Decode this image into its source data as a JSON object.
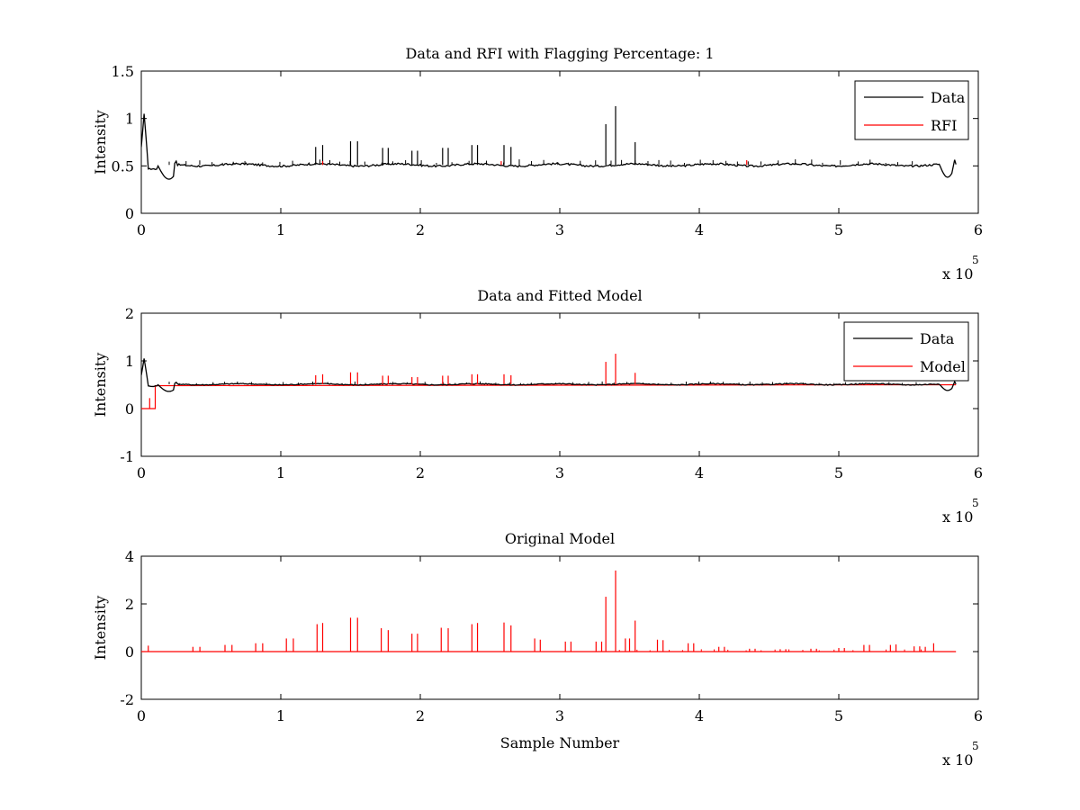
{
  "chart_data": [
    {
      "type": "line",
      "title": "Data and RFI with Flagging Percentage: 1",
      "xlabel": "",
      "ylabel": "Intensity",
      "xlim": [
        0,
        600000
      ],
      "ylim": [
        0,
        1.5
      ],
      "xticks": [
        0,
        1,
        2,
        3,
        4,
        5,
        6
      ],
      "yticks": [
        0,
        0.5,
        1,
        1.5
      ],
      "x_exponent_label": "x 10",
      "x_exponent_power": "5",
      "legend_position": "top-right",
      "baseline": 0.51,
      "series": [
        {
          "name": "Data",
          "color": "#000000"
        },
        {
          "name": "RFI",
          "color": "#ff0000"
        }
      ],
      "spikes": [
        {
          "x": 125000,
          "y": 0.7,
          "series": "Data"
        },
        {
          "x": 130000,
          "y": 0.72,
          "series": "Data"
        },
        {
          "x": 150000,
          "y": 0.76,
          "series": "Data"
        },
        {
          "x": 155000,
          "y": 0.76,
          "series": "Data"
        },
        {
          "x": 173000,
          "y": 0.69,
          "series": "Data"
        },
        {
          "x": 177000,
          "y": 0.69,
          "series": "Data"
        },
        {
          "x": 194000,
          "y": 0.66,
          "series": "Data"
        },
        {
          "x": 198000,
          "y": 0.66,
          "series": "Data"
        },
        {
          "x": 216000,
          "y": 0.69,
          "series": "Data"
        },
        {
          "x": 220000,
          "y": 0.69,
          "series": "Data"
        },
        {
          "x": 237000,
          "y": 0.72,
          "series": "Data"
        },
        {
          "x": 241000,
          "y": 0.72,
          "series": "Data"
        },
        {
          "x": 260000,
          "y": 0.72,
          "series": "Data"
        },
        {
          "x": 265000,
          "y": 0.7,
          "series": "Data"
        },
        {
          "x": 333000,
          "y": 0.94,
          "series": "Data"
        },
        {
          "x": 340000,
          "y": 1.13,
          "series": "Data"
        },
        {
          "x": 354000,
          "y": 0.75,
          "series": "Data"
        },
        {
          "x": 130000,
          "y": 0.55,
          "series": "RFI"
        },
        {
          "x": 258000,
          "y": 0.55,
          "series": "RFI"
        },
        {
          "x": 434000,
          "y": 0.56,
          "series": "RFI"
        }
      ]
    },
    {
      "type": "line",
      "title": "Data and Fitted Model",
      "xlabel": "",
      "ylabel": "Intensity",
      "xlim": [
        0,
        600000
      ],
      "ylim": [
        -1,
        2
      ],
      "xticks": [
        0,
        1,
        2,
        3,
        4,
        5,
        6
      ],
      "yticks": [
        -1,
        0,
        1,
        2
      ],
      "x_exponent_label": "x 10",
      "x_exponent_power": "5",
      "legend_position": "top-right",
      "baseline": 0.51,
      "series": [
        {
          "name": "Data",
          "color": "#000000"
        },
        {
          "name": "Model",
          "color": "#ff0000"
        }
      ],
      "spikes": [
        {
          "x": 125000,
          "y": 0.7,
          "series": "Model"
        },
        {
          "x": 130000,
          "y": 0.72,
          "series": "Model"
        },
        {
          "x": 150000,
          "y": 0.76,
          "series": "Model"
        },
        {
          "x": 155000,
          "y": 0.76,
          "series": "Model"
        },
        {
          "x": 173000,
          "y": 0.69,
          "series": "Model"
        },
        {
          "x": 177000,
          "y": 0.69,
          "series": "Model"
        },
        {
          "x": 194000,
          "y": 0.66,
          "series": "Model"
        },
        {
          "x": 198000,
          "y": 0.66,
          "series": "Model"
        },
        {
          "x": 216000,
          "y": 0.69,
          "series": "Model"
        },
        {
          "x": 220000,
          "y": 0.69,
          "series": "Model"
        },
        {
          "x": 237000,
          "y": 0.72,
          "series": "Model"
        },
        {
          "x": 241000,
          "y": 0.72,
          "series": "Model"
        },
        {
          "x": 260000,
          "y": 0.72,
          "series": "Model"
        },
        {
          "x": 265000,
          "y": 0.7,
          "series": "Model"
        },
        {
          "x": 333000,
          "y": 0.98,
          "series": "Model"
        },
        {
          "x": 340000,
          "y": 1.15,
          "series": "Model"
        },
        {
          "x": 354000,
          "y": 0.75,
          "series": "Model"
        }
      ]
    },
    {
      "type": "line",
      "title": "Original Model",
      "xlabel": "Sample Number",
      "ylabel": "Intensity",
      "xlim": [
        0,
        600000
      ],
      "ylim": [
        -2,
        4
      ],
      "xticks": [
        0,
        1,
        2,
        3,
        4,
        5,
        6
      ],
      "yticks": [
        -2,
        0,
        2,
        4
      ],
      "x_exponent_label": "x 10",
      "x_exponent_power": "5",
      "baseline": 0,
      "series": [
        {
          "color": "#ff0000"
        }
      ],
      "spikes": [
        {
          "x": 5000,
          "y": 0.25
        },
        {
          "x": 37000,
          "y": 0.2
        },
        {
          "x": 42000,
          "y": 0.2
        },
        {
          "x": 60000,
          "y": 0.28
        },
        {
          "x": 65000,
          "y": 0.28
        },
        {
          "x": 82000,
          "y": 0.35
        },
        {
          "x": 87000,
          "y": 0.35
        },
        {
          "x": 104000,
          "y": 0.55
        },
        {
          "x": 109000,
          "y": 0.55
        },
        {
          "x": 126000,
          "y": 1.15
        },
        {
          "x": 130000,
          "y": 1.2
        },
        {
          "x": 150000,
          "y": 1.42
        },
        {
          "x": 155000,
          "y": 1.42
        },
        {
          "x": 172000,
          "y": 0.98
        },
        {
          "x": 177000,
          "y": 0.9
        },
        {
          "x": 194000,
          "y": 0.75
        },
        {
          "x": 198000,
          "y": 0.75
        },
        {
          "x": 215000,
          "y": 1.0
        },
        {
          "x": 220000,
          "y": 0.98
        },
        {
          "x": 237000,
          "y": 1.15
        },
        {
          "x": 241000,
          "y": 1.2
        },
        {
          "x": 260000,
          "y": 1.22
        },
        {
          "x": 265000,
          "y": 1.1
        },
        {
          "x": 282000,
          "y": 0.55
        },
        {
          "x": 286000,
          "y": 0.5
        },
        {
          "x": 304000,
          "y": 0.42
        },
        {
          "x": 308000,
          "y": 0.42
        },
        {
          "x": 326000,
          "y": 0.42
        },
        {
          "x": 330000,
          "y": 0.42
        },
        {
          "x": 333000,
          "y": 2.3
        },
        {
          "x": 340000,
          "y": 3.4
        },
        {
          "x": 347000,
          "y": 0.55
        },
        {
          "x": 350000,
          "y": 0.55
        },
        {
          "x": 354000,
          "y": 1.3
        },
        {
          "x": 370000,
          "y": 0.5
        },
        {
          "x": 374000,
          "y": 0.48
        },
        {
          "x": 392000,
          "y": 0.35
        },
        {
          "x": 396000,
          "y": 0.35
        },
        {
          "x": 414000,
          "y": 0.2
        },
        {
          "x": 418000,
          "y": 0.2
        },
        {
          "x": 436000,
          "y": 0.12
        },
        {
          "x": 440000,
          "y": 0.12
        },
        {
          "x": 458000,
          "y": 0.1
        },
        {
          "x": 462000,
          "y": 0.1
        },
        {
          "x": 480000,
          "y": 0.12
        },
        {
          "x": 484000,
          "y": 0.12
        },
        {
          "x": 500000,
          "y": 0.15
        },
        {
          "x": 504000,
          "y": 0.15
        },
        {
          "x": 518000,
          "y": 0.28
        },
        {
          "x": 522000,
          "y": 0.28
        },
        {
          "x": 537000,
          "y": 0.28
        },
        {
          "x": 541000,
          "y": 0.3
        },
        {
          "x": 554000,
          "y": 0.22
        },
        {
          "x": 558000,
          "y": 0.22
        },
        {
          "x": 562000,
          "y": 0.2
        },
        {
          "x": 568000,
          "y": 0.35
        }
      ]
    }
  ]
}
